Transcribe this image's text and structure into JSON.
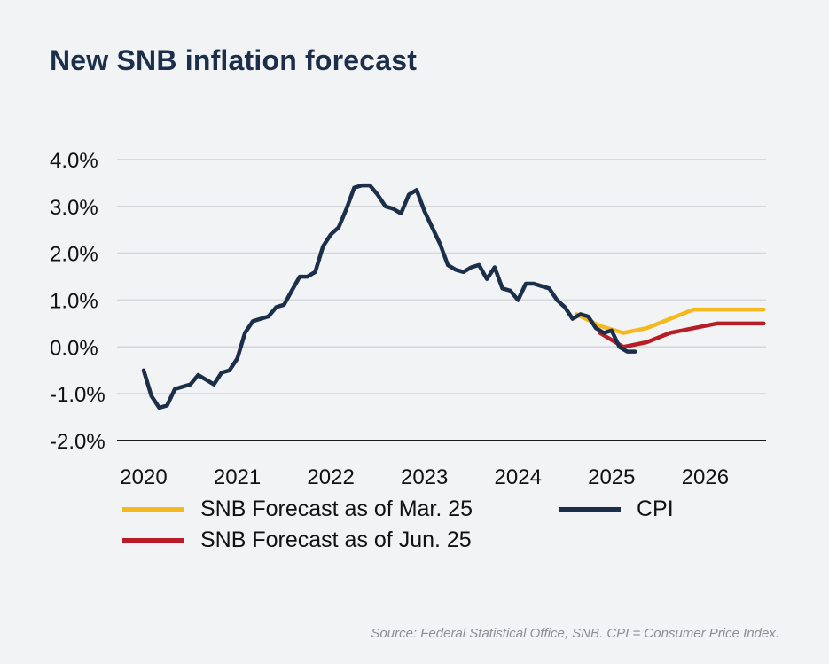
{
  "title": "New SNB inflation forecast",
  "source": "Source: Federal Statistical Office, SNB. CPI = Consumer Price Index.",
  "colors": {
    "cpi": "#1c2f4a",
    "mar": "#f5b91e",
    "jun": "#b81c24",
    "grid": "#d6d8dc",
    "axis": "#1a1a1a"
  },
  "chart_data": {
    "type": "line",
    "title": "New SNB inflation forecast",
    "xlabel": "",
    "ylabel": "",
    "xlim": [
      2020.0,
      2026.65
    ],
    "ylim": [
      -2.0,
      4.0
    ],
    "x_ticks": [
      2020,
      2021,
      2022,
      2023,
      2024,
      2025,
      2026
    ],
    "x_tick_labels": [
      "2020",
      "2021",
      "2022",
      "2023",
      "2024",
      "2025",
      "2026"
    ],
    "y_ticks": [
      -2.0,
      -1.0,
      0.0,
      1.0,
      2.0,
      3.0,
      4.0
    ],
    "y_tick_labels": [
      "-2.0%",
      "-1.0%",
      "0.0%",
      "1.0%",
      "2.0%",
      "3.0%",
      "4.0%"
    ],
    "grid": true,
    "legend_position": "bottom",
    "series": [
      {
        "name": "SNB Forecast as of Mar. 25",
        "key": "mar",
        "x": [
          2024.625,
          2024.875,
          2025.125,
          2025.375,
          2025.625,
          2025.875,
          2026.125,
          2026.375,
          2026.625
        ],
        "values": [
          0.7,
          0.45,
          0.3,
          0.4,
          0.6,
          0.8,
          0.8,
          0.8,
          0.8
        ]
      },
      {
        "name": "SNB Forecast as of Jun. 25",
        "key": "jun",
        "x": [
          2024.875,
          2025.125,
          2025.375,
          2025.625,
          2025.875,
          2026.125,
          2026.375,
          2026.625
        ],
        "values": [
          0.3,
          0.0,
          0.1,
          0.3,
          0.4,
          0.5,
          0.5,
          0.5
        ]
      },
      {
        "name": "CPI",
        "key": "cpi",
        "x": [
          2020.0,
          2020.083,
          2020.167,
          2020.25,
          2020.333,
          2020.417,
          2020.5,
          2020.583,
          2020.667,
          2020.75,
          2020.833,
          2020.917,
          2021.0,
          2021.083,
          2021.167,
          2021.25,
          2021.333,
          2021.417,
          2021.5,
          2021.583,
          2021.667,
          2021.75,
          2021.833,
          2021.917,
          2022.0,
          2022.083,
          2022.167,
          2022.25,
          2022.333,
          2022.417,
          2022.5,
          2022.583,
          2022.667,
          2022.75,
          2022.833,
          2022.917,
          2023.0,
          2023.083,
          2023.167,
          2023.25,
          2023.333,
          2023.417,
          2023.5,
          2023.583,
          2023.667,
          2023.75,
          2023.833,
          2023.917,
          2024.0,
          2024.083,
          2024.167,
          2024.25,
          2024.333,
          2024.417,
          2024.5,
          2024.583,
          2024.667,
          2024.75,
          2024.833,
          2024.917,
          2025.0,
          2025.083,
          2025.167,
          2025.25
        ],
        "values": [
          -0.5,
          -1.05,
          -1.3,
          -1.25,
          -0.9,
          -0.85,
          -0.8,
          -0.6,
          -0.7,
          -0.8,
          -0.55,
          -0.5,
          -0.25,
          0.3,
          0.55,
          0.6,
          0.65,
          0.85,
          0.9,
          1.2,
          1.5,
          1.5,
          1.6,
          2.15,
          2.4,
          2.55,
          2.95,
          3.4,
          3.45,
          3.45,
          3.25,
          3.0,
          2.95,
          2.85,
          3.25,
          3.35,
          2.9,
          2.55,
          2.2,
          1.75,
          1.65,
          1.6,
          1.7,
          1.75,
          1.45,
          1.7,
          1.25,
          1.2,
          1.0,
          1.35,
          1.35,
          1.3,
          1.25,
          1.0,
          0.85,
          0.6,
          0.7,
          0.65,
          0.4,
          0.3,
          0.35,
          0.0,
          -0.1,
          -0.1
        ]
      }
    ]
  }
}
